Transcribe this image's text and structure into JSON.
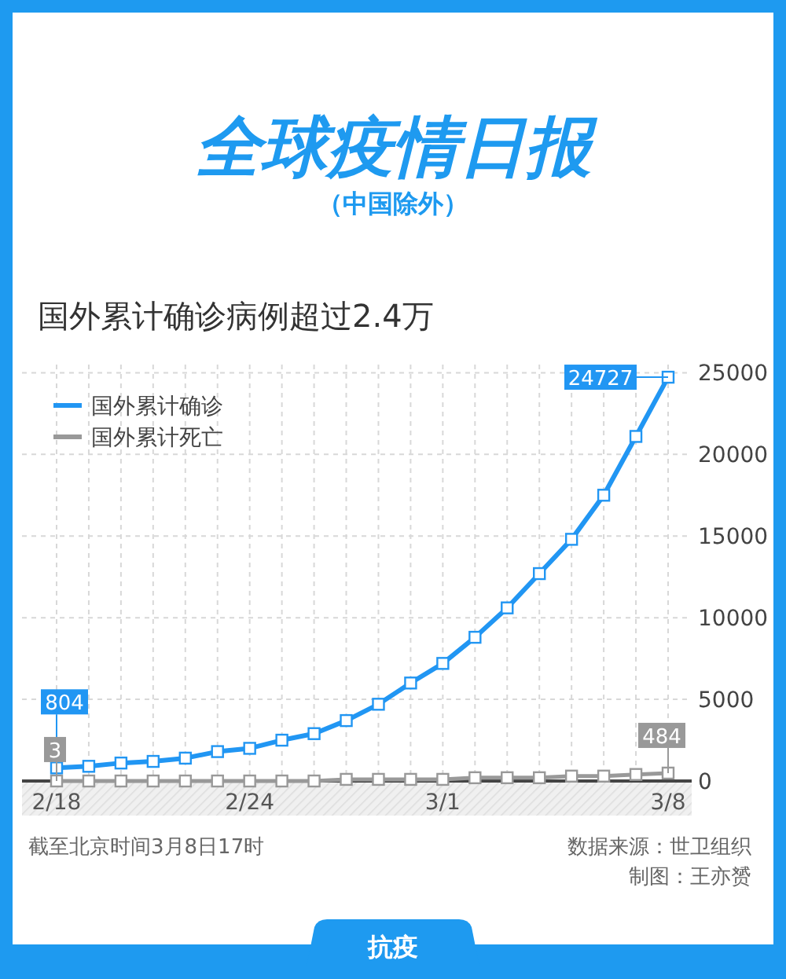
{
  "chart_data": {
    "type": "line",
    "title": "全球疫情日报",
    "subtitle": "（中国除外）",
    "annotations": [
      "国外累计确诊病例超过2.4万",
      "截至北京时间3月8日17时",
      "数据来源：世卫组织",
      "制图：王亦赟",
      "抗疫"
    ],
    "categories": [
      "2/18",
      null,
      null,
      null,
      null,
      null,
      "2/24",
      null,
      null,
      null,
      null,
      null,
      "3/1",
      null,
      null,
      null,
      null,
      null,
      null,
      "3/8"
    ],
    "series": [
      {
        "name": "国外累计确诊",
        "color": "#2196f3",
        "values": [
          804,
          900,
          1100,
          1200,
          1400,
          1800,
          2000,
          2500,
          2900,
          3700,
          4700,
          6000,
          7200,
          8800,
          10600,
          12700,
          14800,
          17500,
          21100,
          24727
        ],
        "value_labels": [
          "804",
          null,
          null,
          null,
          null,
          null,
          null,
          null,
          null,
          null,
          null,
          null,
          null,
          null,
          null,
          null,
          null,
          null,
          null,
          "24727"
        ]
      },
      {
        "name": "国外累计死亡",
        "color": "#999999",
        "values": [
          3,
          0,
          0,
          0,
          0,
          0,
          0,
          0,
          0,
          100,
          100,
          100,
          100,
          200,
          200,
          200,
          300,
          300,
          400,
          484
        ],
        "value_labels": [
          "3",
          null,
          null,
          null,
          null,
          null,
          null,
          null,
          null,
          null,
          null,
          null,
          null,
          null,
          null,
          null,
          null,
          null,
          null,
          "484"
        ]
      }
    ],
    "ylim": [
      0,
      25500
    ],
    "yticks": [
      0,
      5000,
      10000,
      15000,
      20000,
      25000
    ],
    "grid": true,
    "legend": "top left",
    "marker": "square",
    "line_style": "solid"
  }
}
